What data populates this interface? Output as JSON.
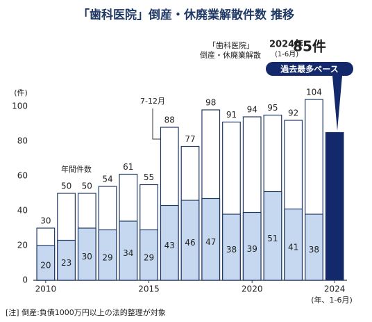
{
  "chart_data": {
    "type": "bar",
    "title": "「歯科医院」倒産・休廃業解散件数 推移",
    "header": {
      "line1": "「歯科医院」",
      "line2": "倒産・休廃業解散",
      "year": "2024年",
      "period": "(1-6月)"
    },
    "annotations": {
      "annual": "年間件数",
      "second_half": "7-12月",
      "record": "過去最多ペース"
    },
    "x": [
      2010,
      2011,
      2012,
      2013,
      2014,
      2015,
      2016,
      2017,
      2018,
      2019,
      2020,
      2021,
      2022,
      2023,
      2024
    ],
    "xlim": [
      2009.4,
      2024.6
    ],
    "xticks": [
      2010,
      2015,
      2020,
      2024
    ],
    "x_label": "(年、1-6月)",
    "ylim": [
      0,
      110
    ],
    "yticks": [
      0,
      20,
      40,
      60,
      80,
      100
    ],
    "y_label": "(件)",
    "series": [
      {
        "name": "年間件数",
        "color": "#ffffff",
        "edge_color": "#1f3864",
        "colors": [
          "#ffffff",
          "#ffffff",
          "#ffffff",
          "#ffffff",
          "#ffffff",
          "#ffffff",
          "#ffffff",
          "#ffffff",
          "#ffffff",
          "#ffffff",
          "#ffffff",
          "#ffffff",
          "#ffffff",
          "#ffffff",
          "#13296b"
        ],
        "values": [
          30,
          50,
          50,
          54,
          61,
          55,
          88,
          77,
          98,
          91,
          94,
          95,
          92,
          104,
          85
        ],
        "value_labels": [
          "30",
          "50",
          "50",
          "54",
          "61",
          "55",
          "88",
          "77",
          "98",
          "91",
          "94",
          "95",
          "92",
          "104",
          "85件"
        ]
      },
      {
        "color": "#c5d8f0",
        "values": [
          20,
          23,
          30,
          29,
          34,
          29,
          43,
          46,
          47,
          38,
          39,
          51,
          41,
          38,
          null
        ]
      }
    ],
    "footnote": "[注] 倒産:負債1000万円以上の法的整理が対象"
  }
}
